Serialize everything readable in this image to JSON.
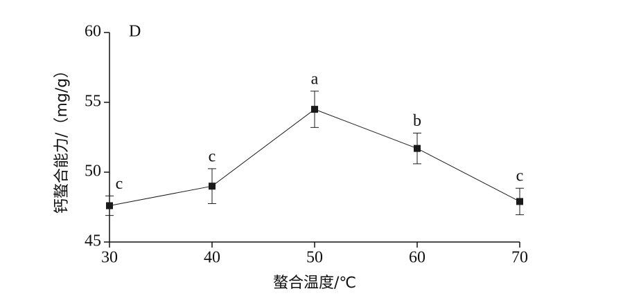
{
  "chart_data": {
    "type": "line",
    "panel_label": "D",
    "x_label": "螯合温度/℃",
    "y_label": "钙螯合能力/（mg/g）",
    "x": [
      30,
      40,
      50,
      60,
      70
    ],
    "series": [
      {
        "color": "#1a1a1a",
        "values": [
          47.6,
          49.0,
          54.5,
          51.7,
          47.9
        ],
        "errors": [
          0.7,
          1.25,
          1.3,
          1.1,
          0.95
        ],
        "annotations": [
          "c",
          "c",
          "a",
          "b",
          "c"
        ]
      }
    ],
    "xlim": [
      30,
      70
    ],
    "xticks": [
      30,
      40,
      50,
      60,
      70
    ],
    "ylim": [
      45,
      60
    ],
    "yticks": [
      45,
      50,
      55,
      60
    ]
  }
}
